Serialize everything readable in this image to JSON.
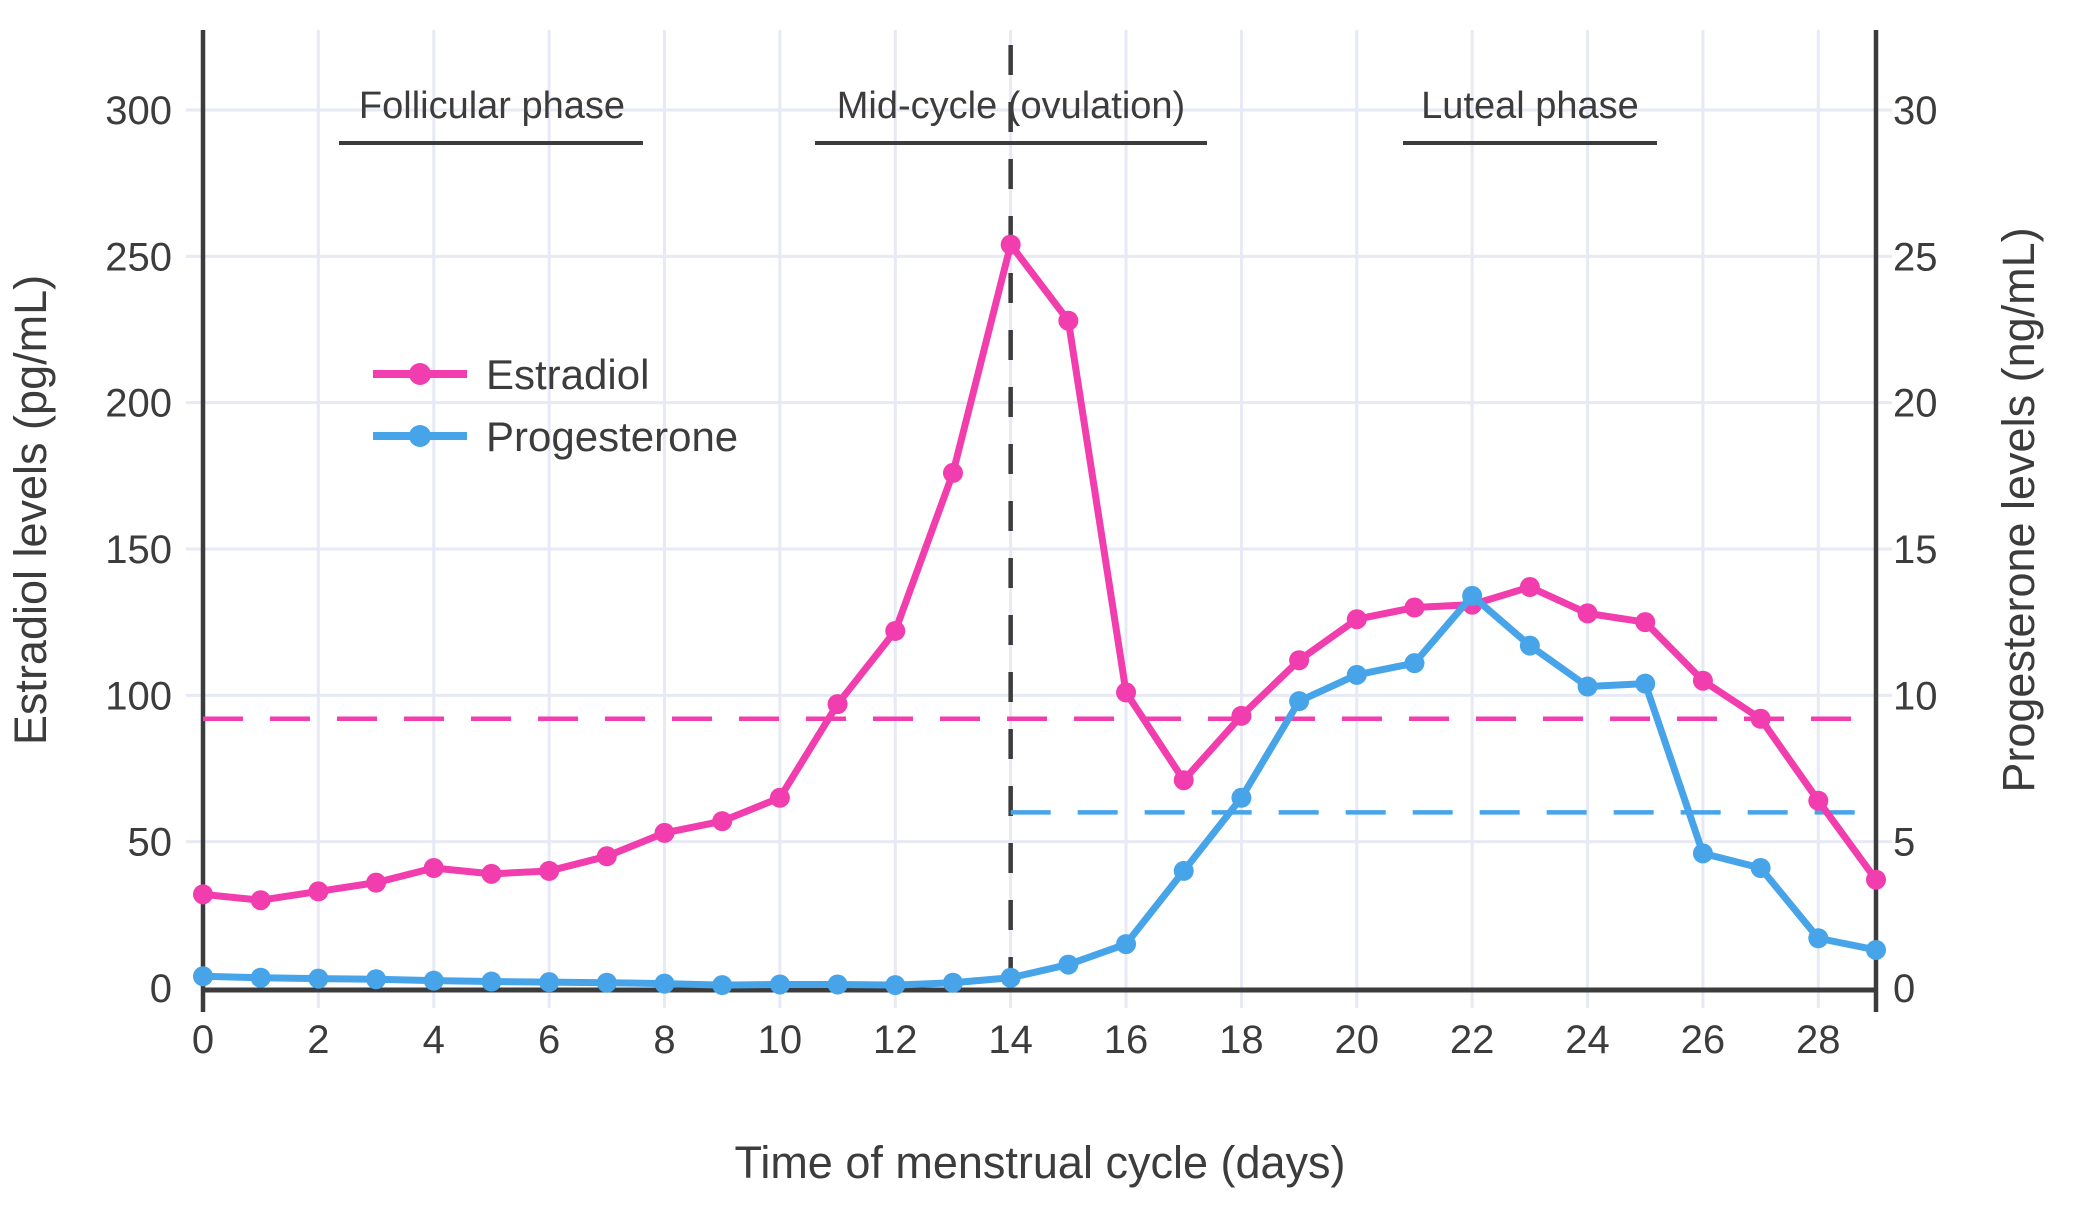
{
  "chart_data": {
    "type": "line",
    "title": "",
    "xlabel": "Time of menstrual cycle (days)",
    "ylabel_left": "Estradiol levels (pg/mL)",
    "ylabel_right": "Progesterone levels (ng/mL)",
    "xlim": [
      0,
      29
    ],
    "ylim_left": [
      0,
      300
    ],
    "ylim_right": [
      0,
      30
    ],
    "grid": true,
    "legend_position": "upper-left-inside",
    "x_ticks": [
      0,
      2,
      4,
      6,
      8,
      10,
      12,
      14,
      16,
      18,
      20,
      22,
      24,
      26,
      28
    ],
    "y_ticks_left": [
      0,
      50,
      100,
      150,
      200,
      250,
      300
    ],
    "y_ticks_right": [
      0,
      5,
      10,
      15,
      20,
      25,
      30
    ],
    "days": [
      0,
      1,
      2,
      3,
      4,
      5,
      6,
      7,
      8,
      9,
      10,
      11,
      12,
      13,
      14,
      15,
      16,
      17,
      18,
      19,
      20,
      21,
      22,
      23,
      24,
      25,
      26,
      27,
      28,
      29
    ],
    "series": [
      {
        "name": "Estradiol",
        "axis": "left",
        "unit": "pg/mL",
        "color": "#f13dae",
        "values": [
          32,
          30,
          33,
          36,
          41,
          39,
          40,
          45,
          53,
          57,
          65,
          97,
          122,
          176,
          254,
          228,
          101,
          71,
          93,
          112,
          126,
          130,
          131,
          137,
          128,
          125,
          105,
          92,
          64,
          37
        ]
      },
      {
        "name": "Progesterone",
        "axis": "right",
        "unit": "ng/mL",
        "color": "#47a4e9",
        "values": [
          0.4,
          0.35,
          0.32,
          0.3,
          0.25,
          0.22,
          0.2,
          0.18,
          0.15,
          0.1,
          0.12,
          0.12,
          0.1,
          0.18,
          0.35,
          0.8,
          1.5,
          4.0,
          6.5,
          9.8,
          10.7,
          11.1,
          13.4,
          11.7,
          10.3,
          10.4,
          4.6,
          4.1,
          1.7,
          1.3
        ]
      }
    ],
    "annotations": {
      "phases": [
        {
          "label": "Follicular phase"
        },
        {
          "label": "Mid-cycle (ovulation)"
        },
        {
          "label": "Luteal phase"
        }
      ],
      "vline": {
        "day": 14,
        "style": "dashed",
        "color": "#3c3c3c"
      },
      "hlines": [
        {
          "series": "Estradiol",
          "axis": "left",
          "value": 92,
          "from_day": 0,
          "to_day": 29,
          "style": "dashed",
          "color": "#f13dae"
        },
        {
          "series": "Progesterone",
          "axis": "right",
          "value": 6,
          "from_day": 14,
          "to_day": 29,
          "style": "dashed",
          "color": "#47a4e9"
        }
      ]
    },
    "colors": {
      "estradiol": "#f13dae",
      "progesterone": "#47a4e9",
      "grid": "#e7eaf4",
      "axis": "#3c3c3c",
      "text": "#3c3c3c",
      "background": "#ffffff"
    }
  }
}
